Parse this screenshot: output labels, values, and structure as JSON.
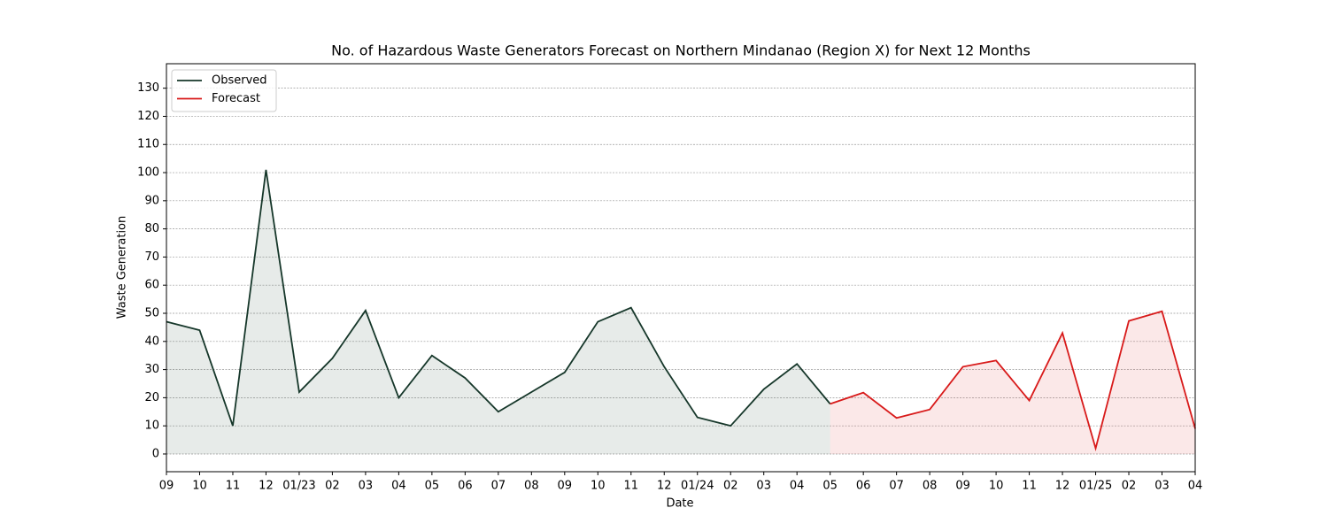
{
  "chart_data": {
    "type": "line",
    "title": "No. of Hazardous Waste Generators Forecast on Northern Mindanao (Region X) for Next 12 Months",
    "x_label": "Date",
    "y_label": "Waste Generation",
    "categories": [
      "09",
      "10",
      "11",
      "12",
      "01/23",
      "02",
      "03",
      "04",
      "05",
      "06",
      "07",
      "08",
      "09",
      "10",
      "11",
      "12",
      "01/24",
      "02",
      "03",
      "04",
      "05",
      "06",
      "07",
      "08",
      "09",
      "10",
      "11",
      "12",
      "01/25",
      "02",
      "03",
      "04"
    ],
    "series": [
      {
        "name": "Observed",
        "color": "#16372a",
        "values": [
          47,
          44,
          10,
          101,
          22,
          34,
          51,
          20,
          35,
          27,
          15,
          22,
          29,
          47,
          52,
          31,
          13,
          10,
          23,
          32,
          17.8,
          null,
          null,
          null,
          null,
          null,
          null,
          null,
          null,
          null,
          null,
          null
        ]
      },
      {
        "name": "Forecast",
        "color": "#d81a1a",
        "values": [
          null,
          null,
          null,
          null,
          null,
          null,
          null,
          null,
          null,
          null,
          null,
          null,
          null,
          null,
          null,
          null,
          null,
          null,
          null,
          null,
          17.8,
          21.8,
          12.8,
          15.8,
          31,
          33.2,
          19,
          43,
          2,
          47.3,
          50.7,
          9
        ]
      }
    ],
    "ylim": [
      -6.3,
      138.7
    ],
    "yticks": [
      0,
      10,
      20,
      30,
      40,
      50,
      60,
      70,
      80,
      90,
      100,
      110,
      120,
      130
    ],
    "grid": true,
    "area_fill": true,
    "legend": "upper left"
  }
}
